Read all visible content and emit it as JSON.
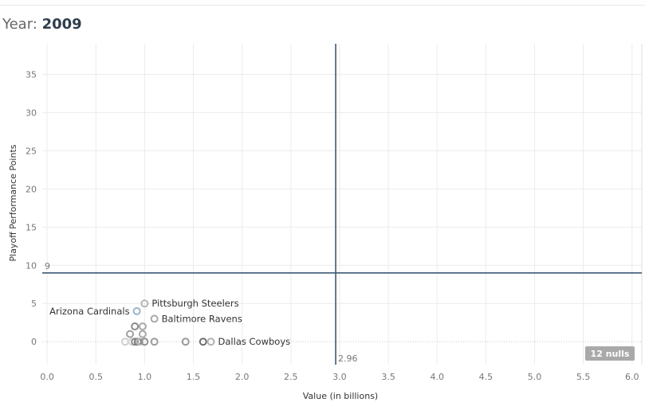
{
  "header": {
    "year_label": "Year:",
    "year_value": "2009"
  },
  "chart_data": {
    "type": "scatter",
    "xlabel": "Value (in billions)",
    "ylabel": "Playoff Performance Points",
    "xlim": [
      -0.05,
      6.1
    ],
    "ylim": [
      -3,
      39
    ],
    "xticks": [
      "0.0",
      "0.5",
      "1.0",
      "1.5",
      "2.0",
      "2.5",
      "3.0",
      "3.5",
      "4.0",
      "4.5",
      "5.0",
      "5.5",
      "6.0"
    ],
    "yticks": [
      "0",
      "5",
      "10",
      "15",
      "20",
      "25",
      "30",
      "35"
    ],
    "grid": true,
    "reference_lines": [
      {
        "axis": "x",
        "value": 2.96,
        "label": "2.96"
      },
      {
        "axis": "y",
        "value": 9,
        "label": "9"
      }
    ],
    "points": [
      {
        "x": 0.8,
        "y": 0,
        "color": "#cfcfcf"
      },
      {
        "x": 0.85,
        "y": 1,
        "color": "#9e9e9e"
      },
      {
        "x": 0.87,
        "y": 0,
        "color": "#d8d8d8"
      },
      {
        "x": 0.9,
        "y": 2,
        "color": "#8a8a8a"
      },
      {
        "x": 0.9,
        "y": 0,
        "color": "#8a8a8a"
      },
      {
        "x": 0.92,
        "y": 4,
        "color": "#9ab6cc",
        "label": "Arizona Cardinals"
      },
      {
        "x": 0.93,
        "y": 0,
        "color": "#7d7d7d"
      },
      {
        "x": 0.95,
        "y": 0,
        "color": "#b8b8b8"
      },
      {
        "x": 0.98,
        "y": 2,
        "color": "#a8a8a8"
      },
      {
        "x": 0.98,
        "y": 1,
        "color": "#a8a8a8"
      },
      {
        "x": 1.0,
        "y": 5,
        "color": "#b5b5b5",
        "label": "Pittsburgh Steelers"
      },
      {
        "x": 1.0,
        "y": 0,
        "color": "#8f8f8f"
      },
      {
        "x": 1.1,
        "y": 3,
        "color": "#aaaaaa",
        "label": "Baltimore Ravens"
      },
      {
        "x": 1.1,
        "y": 0,
        "color": "#9c9c9c"
      },
      {
        "x": 1.42,
        "y": 0,
        "color": "#9a9a9a"
      },
      {
        "x": 1.6,
        "y": 0,
        "color": "#6f6f6f"
      },
      {
        "x": 1.68,
        "y": 0,
        "color": "#b2b2b2",
        "label": "Dallas Cowboys"
      }
    ],
    "nulls_indicator": "12 nulls",
    "colors": {
      "reference_line": "#3e5a74",
      "grid": "#ececec",
      "nulls_badge": "#a9a9a9"
    }
  }
}
